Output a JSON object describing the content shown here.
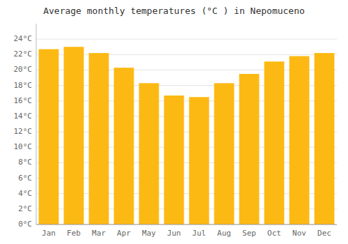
{
  "chart_data": {
    "type": "bar",
    "title": "Average monthly temperatures (°C ) in Nepomuceno",
    "categories": [
      "Jan",
      "Feb",
      "Mar",
      "Apr",
      "May",
      "Jun",
      "Jul",
      "Aug",
      "Sep",
      "Oct",
      "Nov",
      "Dec"
    ],
    "values": [
      22.7,
      23.0,
      22.2,
      20.3,
      18.3,
      16.7,
      16.5,
      18.3,
      19.5,
      21.1,
      21.8,
      22.2
    ],
    "color": "#FDB913",
    "ylim": [
      0,
      26
    ],
    "yticks": [
      {
        "value": 0,
        "label": "0°C"
      },
      {
        "value": 2,
        "label": "2°C"
      },
      {
        "value": 4,
        "label": "4°C"
      },
      {
        "value": 6,
        "label": "6°C"
      },
      {
        "value": 8,
        "label": "8°C"
      },
      {
        "value": 10,
        "label": "10°C"
      },
      {
        "value": 12,
        "label": "12°C"
      },
      {
        "value": 14,
        "label": "14°C"
      },
      {
        "value": 16,
        "label": "16°C"
      },
      {
        "value": 18,
        "label": "18°C"
      },
      {
        "value": 20,
        "label": "20°C"
      },
      {
        "value": 22,
        "label": "22°C"
      },
      {
        "value": 24,
        "label": "24°C"
      }
    ],
    "grid": true
  }
}
